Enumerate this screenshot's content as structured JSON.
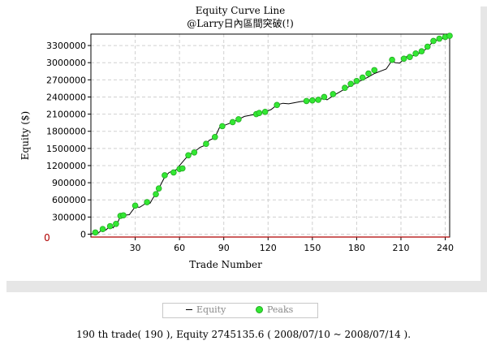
{
  "chart_data": {
    "type": "line",
    "title": "Equity Curve Line",
    "subtitle": "@Larry日內區間突破(!)",
    "xlabel": "Trade Number",
    "ylabel": "Equity ($)",
    "xlim": [
      0,
      243
    ],
    "ylim": [
      -50000,
      3500000
    ],
    "xticks": [
      30,
      60,
      90,
      120,
      150,
      180,
      210,
      240
    ],
    "yticks": [
      0,
      300000,
      600000,
      900000,
      1200000,
      1500000,
      1800000,
      2100000,
      2400000,
      2700000,
      3000000,
      3300000
    ],
    "zero_marker": "0",
    "grid": true,
    "series": [
      {
        "name": "Equity",
        "color": "#000000",
        "x": [
          0,
          3,
          5,
          8,
          10,
          13,
          15,
          17,
          18,
          20,
          22,
          26,
          30,
          33,
          36,
          38,
          40,
          42,
          44,
          46,
          50,
          53,
          56,
          58,
          60,
          62,
          66,
          70,
          74,
          78,
          80,
          84,
          87,
          89,
          90,
          92,
          96,
          100,
          104,
          108,
          112,
          114,
          118,
          122,
          126,
          130,
          134,
          138,
          142,
          146,
          150,
          154,
          158,
          160,
          164,
          168,
          172,
          176,
          180,
          184,
          188,
          192,
          196,
          200,
          204,
          206,
          209,
          212,
          214,
          216,
          220,
          224,
          228,
          232,
          236,
          240,
          243
        ],
        "y": [
          0,
          30000,
          20000,
          90000,
          70000,
          140000,
          110000,
          180000,
          190000,
          320000,
          330000,
          340000,
          480000,
          470000,
          520000,
          560000,
          540000,
          630000,
          700000,
          800000,
          1000000,
          1080000,
          1110000,
          1130000,
          1200000,
          1260000,
          1380000,
          1440000,
          1520000,
          1560000,
          1640000,
          1690000,
          1860000,
          1880000,
          1900000,
          1920000,
          1960000,
          2010000,
          2060000,
          2080000,
          2100000,
          2120000,
          2140000,
          2180000,
          2260000,
          2290000,
          2280000,
          2300000,
          2320000,
          2330000,
          2340000,
          2360000,
          2370000,
          2350000,
          2420000,
          2480000,
          2540000,
          2600000,
          2650000,
          2700000,
          2750000,
          2810000,
          2850000,
          2890000,
          3040000,
          3000000,
          2990000,
          3060000,
          3110000,
          3100000,
          3140000,
          3180000,
          3260000,
          3380000,
          3400000,
          3440000,
          3470000
        ]
      },
      {
        "name": "Peaks",
        "color": "#33e833",
        "x": [
          3,
          8,
          13,
          17,
          20,
          22,
          30,
          38,
          44,
          46,
          50,
          56,
          60,
          62,
          66,
          70,
          78,
          84,
          89,
          96,
          100,
          112,
          114,
          118,
          126,
          146,
          150,
          154,
          158,
          164,
          172,
          176,
          180,
          184,
          188,
          192,
          204,
          212,
          216,
          220,
          224,
          228,
          232,
          236,
          240,
          243
        ],
        "y": [
          30000,
          90000,
          140000,
          180000,
          320000,
          330000,
          500000,
          560000,
          700000,
          800000,
          1030000,
          1080000,
          1140000,
          1150000,
          1380000,
          1430000,
          1580000,
          1700000,
          1890000,
          1960000,
          2010000,
          2100000,
          2120000,
          2140000,
          2260000,
          2330000,
          2340000,
          2350000,
          2400000,
          2450000,
          2560000,
          2630000,
          2680000,
          2740000,
          2810000,
          2870000,
          3050000,
          3070000,
          3100000,
          3160000,
          3200000,
          3280000,
          3380000,
          3420000,
          3450000,
          3470000
        ]
      },
      {
        "name": "Zero",
        "color": "#b00000",
        "x": [
          0,
          243
        ],
        "y": [
          -50000,
          -50000
        ]
      }
    ]
  },
  "legend": {
    "equity_label": "Equity",
    "peaks_label": "Peaks"
  },
  "status": {
    "text": "190 th trade( 190 ), Equity  2745135.6 ( 2008/07/10 ~ 2008/07/14 )."
  }
}
